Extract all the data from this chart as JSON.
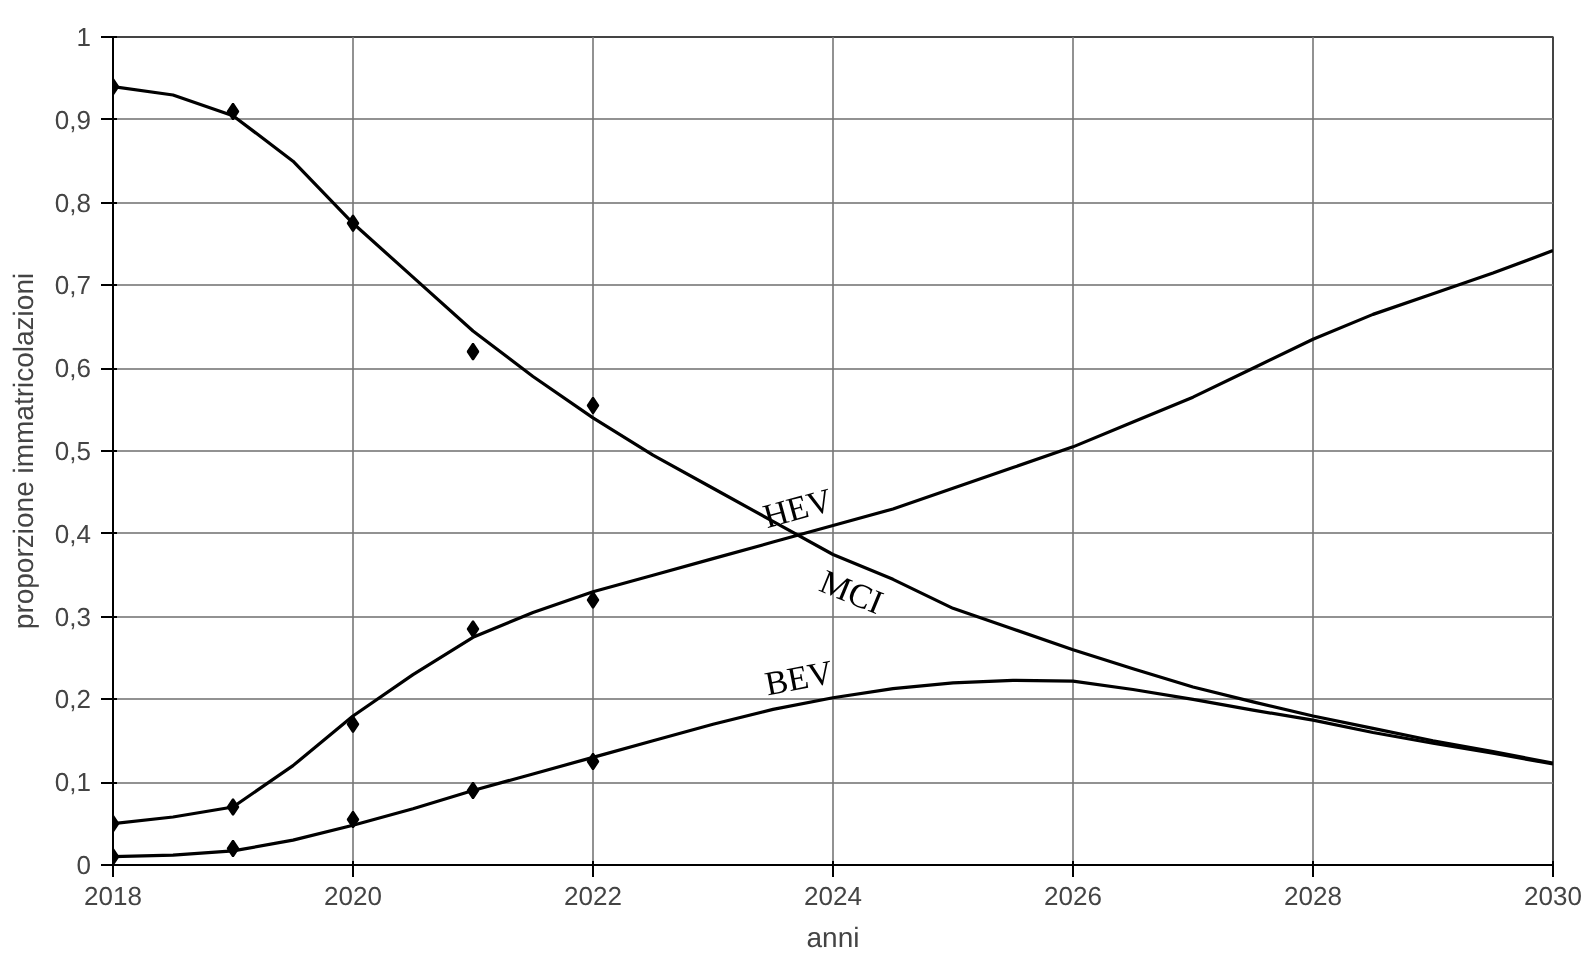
{
  "chart_data": {
    "type": "line",
    "xlabel": "anni",
    "ylabel": "proporzione immatricolazioni",
    "xlim": [
      2018,
      2030
    ],
    "ylim": [
      0,
      1
    ],
    "xticks": [
      2018,
      2020,
      2022,
      2024,
      2026,
      2028,
      2030
    ],
    "yticks": [
      0,
      {
        "value": 0.1,
        "label": "0,1"
      },
      {
        "value": 0.2,
        "label": "0,2"
      },
      {
        "value": 0.3,
        "label": "0,3"
      },
      {
        "value": 0.4,
        "label": "0,4"
      },
      {
        "value": 0.5,
        "label": "0,5"
      },
      {
        "value": 0.6,
        "label": "0,6"
      },
      {
        "value": 0.7,
        "label": "0,7"
      },
      {
        "value": 0.8,
        "label": "0,8"
      },
      {
        "value": 0.9,
        "label": "0,9"
      },
      1
    ],
    "grid": true,
    "line_style": "solid",
    "series": [
      {
        "name": "MCI",
        "color": "#000000",
        "marker": "none",
        "x": [
          2018,
          2018.5,
          2019,
          2019.5,
          2020,
          2020.5,
          2021,
          2021.5,
          2022,
          2022.5,
          2023,
          2023.5,
          2024,
          2024.5,
          2025,
          2025.5,
          2026,
          2026.5,
          2027,
          2027.5,
          2028,
          2028.5,
          2029,
          2029.5,
          2030
        ],
        "values": [
          0.94,
          0.93,
          0.905,
          0.85,
          0.775,
          0.71,
          0.645,
          0.59,
          0.54,
          0.495,
          0.455,
          0.415,
          0.375,
          0.345,
          0.31,
          0.285,
          0.26,
          0.237,
          0.215,
          0.197,
          0.18,
          0.165,
          0.15,
          0.137,
          0.123
        ]
      },
      {
        "name": "HEV",
        "color": "#000000",
        "marker": "none",
        "x": [
          2018,
          2018.5,
          2019,
          2019.5,
          2020,
          2020.5,
          2021,
          2021.5,
          2022,
          2022.5,
          2023,
          2023.5,
          2024,
          2024.5,
          2025,
          2025.5,
          2026,
          2026.5,
          2027,
          2027.5,
          2028,
          2028.5,
          2029,
          2029.5,
          2030
        ],
        "values": [
          0.05,
          0.058,
          0.07,
          0.12,
          0.18,
          0.23,
          0.275,
          0.305,
          0.33,
          0.35,
          0.37,
          0.39,
          0.41,
          0.43,
          0.455,
          0.48,
          0.505,
          0.535,
          0.565,
          0.6,
          0.635,
          0.665,
          0.69,
          0.715,
          0.742
        ]
      },
      {
        "name": "BEV",
        "color": "#000000",
        "marker": "none",
        "x": [
          2018,
          2018.5,
          2019,
          2019.5,
          2020,
          2020.5,
          2021,
          2021.5,
          2022,
          2022.5,
          2023,
          2023.5,
          2024,
          2024.5,
          2025,
          2025.5,
          2026,
          2026.5,
          2027,
          2027.5,
          2028,
          2028.5,
          2029,
          2029.5,
          2030
        ],
        "values": [
          0.01,
          0.012,
          0.017,
          0.03,
          0.048,
          0.068,
          0.09,
          0.11,
          0.13,
          0.15,
          0.17,
          0.188,
          0.202,
          0.213,
          0.22,
          0.223,
          0.222,
          0.212,
          0.2,
          0.187,
          0.175,
          0.16,
          0.147,
          0.135,
          0.122
        ]
      },
      {
        "type": "scatter",
        "color": "#000000",
        "marker": "diamond",
        "x": [
          2018,
          2019,
          2020,
          2021,
          2022
        ],
        "values": [
          0.94,
          0.91,
          0.775,
          0.62,
          0.555
        ]
      },
      {
        "type": "scatter",
        "color": "#000000",
        "marker": "diamond",
        "x": [
          2018,
          2019,
          2020,
          2021,
          2022
        ],
        "values": [
          0.05,
          0.07,
          0.17,
          0.285,
          0.32
        ]
      },
      {
        "type": "scatter",
        "color": "#000000",
        "marker": "diamond",
        "x": [
          2018,
          2019,
          2020,
          2021,
          2022
        ],
        "values": [
          0.01,
          0.02,
          0.055,
          0.09,
          0.125
        ]
      }
    ]
  }
}
